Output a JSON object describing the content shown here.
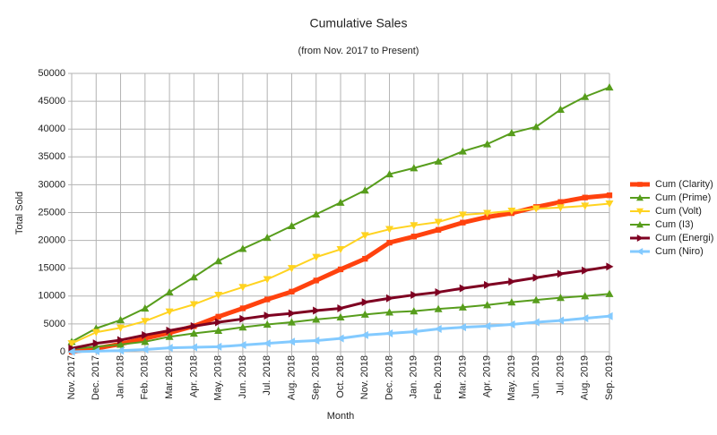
{
  "chart_data": {
    "type": "line",
    "title": "Cumulative Sales",
    "subtitle": "(from Nov. 2017 to Present)",
    "x_label": "Month",
    "y_label": "Total Sold",
    "categories": [
      "Nov. 2017",
      "Dec. 2017",
      "Jan. 2018",
      "Feb. 2018",
      "Mar. 2018",
      "Apr. 2018",
      "May. 2018",
      "Jun. 2018",
      "Jul. 2018",
      "Aug. 2018",
      "Sep. 2018",
      "Oct. 2018",
      "Nov. 2018",
      "Dec. 2018",
      "Jan. 2019",
      "Feb. 2019",
      "Mar. 2019",
      "Apr. 2019",
      "May. 2019",
      "Jun. 2019",
      "Jul. 2019",
      "Aug. 2019",
      "Sep. 2019"
    ],
    "ylim": [
      0,
      50000
    ],
    "yticks": [
      0,
      5000,
      10000,
      15000,
      20000,
      25000,
      30000,
      35000,
      40000,
      45000,
      50000
    ],
    "grid": true,
    "legend": "right",
    "series": [
      {
        "name": "Cum (Clarity)",
        "color": "#ff420e",
        "marker": "square",
        "line_width": 5,
        "values": [
          0,
          600,
          1400,
          2400,
          3400,
          4600,
          6300,
          7800,
          9400,
          10800,
          12800,
          14800,
          16700,
          19600,
          20700,
          21900,
          23200,
          24200,
          24900,
          26000,
          26900,
          27700,
          28100
        ]
      },
      {
        "name": "Cum (Prime)",
        "color": "#579d1c",
        "marker": "triangle-up",
        "line_width": 2,
        "values": [
          1800,
          4200,
          5700,
          7800,
          10700,
          13400,
          16300,
          18500,
          20500,
          22600,
          24700,
          26800,
          29000,
          31900,
          33000,
          34200,
          36000,
          37300,
          39300,
          40400,
          43500,
          45800,
          47500
        ]
      },
      {
        "name": "Cum (Volt)",
        "color": "#ffd320",
        "marker": "triangle-down",
        "line_width": 2,
        "values": [
          1500,
          3500,
          4300,
          5500,
          7200,
          8500,
          10200,
          11600,
          13000,
          15000,
          17000,
          18400,
          20900,
          22000,
          22700,
          23300,
          24600,
          24900,
          25300,
          25700,
          25900,
          26200,
          26600
        ]
      },
      {
        "name": "Cum (I3)",
        "color": "#579d1c",
        "marker": "triangle-up",
        "line_width": 2,
        "values": [
          500,
          900,
          1300,
          1800,
          2700,
          3300,
          3800,
          4400,
          4900,
          5300,
          5800,
          6200,
          6700,
          7100,
          7300,
          7700,
          8000,
          8400,
          8900,
          9300,
          9700,
          10000,
          10400
        ]
      },
      {
        "name": "Cum (Energi)",
        "color": "#7e0021",
        "marker": "triangle-right",
        "line_width": 3,
        "values": [
          600,
          1500,
          2100,
          3000,
          3800,
          4600,
          5300,
          5900,
          6500,
          6900,
          7400,
          7800,
          8900,
          9600,
          10200,
          10700,
          11400,
          12000,
          12600,
          13300,
          14000,
          14600,
          15300
        ]
      },
      {
        "name": "Cum (Niro)",
        "color": "#83caff",
        "marker": "triangle-left",
        "line_width": 3,
        "values": [
          0,
          100,
          200,
          400,
          700,
          800,
          900,
          1200,
          1500,
          1800,
          2000,
          2400,
          3000,
          3300,
          3600,
          4100,
          4400,
          4600,
          4900,
          5300,
          5600,
          6000,
          6400
        ]
      }
    ]
  }
}
